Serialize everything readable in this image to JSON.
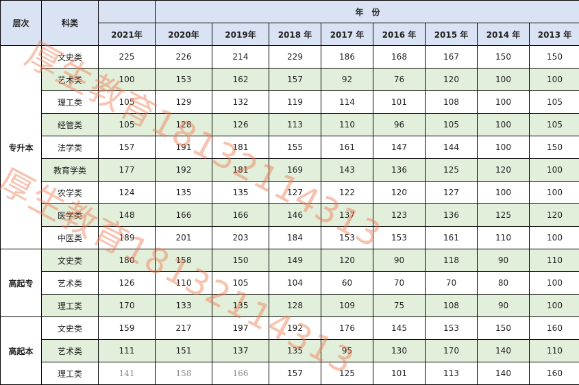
{
  "header": {
    "level": "层次",
    "category": "科类",
    "year_group": "年　份",
    "years": [
      "2021年",
      "2020年",
      "2019年",
      "2018 年",
      "2017 年",
      "2016 年",
      "2015 年",
      "2014 年",
      "2013 年"
    ]
  },
  "groups": [
    {
      "level": "专升本",
      "rows": [
        {
          "category": "文史类",
          "values": [
            "225",
            "226",
            "214",
            "229",
            "186",
            "168",
            "167",
            "150",
            "150"
          ]
        },
        {
          "category": "艺术类",
          "values": [
            "100",
            "153",
            "162",
            "157",
            "92",
            "76",
            "120",
            "100",
            "100"
          ]
        },
        {
          "category": "理工类",
          "values": [
            "105",
            "129",
            "132",
            "119",
            "114",
            "101",
            "108",
            "100",
            "105"
          ]
        },
        {
          "category": "经管类",
          "values": [
            "105",
            "128",
            "126",
            "113",
            "110",
            "96",
            "105",
            "100",
            "105"
          ]
        },
        {
          "category": "法学类",
          "values": [
            "157",
            "191",
            "181",
            "155",
            "161",
            "147",
            "144",
            "100",
            "150"
          ]
        },
        {
          "category": "教育学类",
          "values": [
            "177",
            "192",
            "181",
            "169",
            "143",
            "136",
            "125",
            "120",
            "100"
          ]
        },
        {
          "category": "农学类",
          "values": [
            "124",
            "135",
            "135",
            "127",
            "122",
            "120",
            "127",
            "100",
            "100"
          ]
        },
        {
          "category": "医学类",
          "values": [
            "148",
            "166",
            "166",
            "146",
            "137",
            "123",
            "136",
            "125",
            "120"
          ]
        },
        {
          "category": "中医类",
          "values": [
            "189",
            "201",
            "203",
            "184",
            "153",
            "153",
            "161",
            "110",
            "100"
          ]
        }
      ]
    },
    {
      "level": "高起专",
      "rows": [
        {
          "category": "文史类",
          "values": [
            "180",
            "158",
            "150",
            "149",
            "120",
            "90",
            "118",
            "90",
            "110"
          ]
        },
        {
          "category": "艺术类",
          "values": [
            "126",
            "110",
            "105",
            "104",
            "60",
            "70",
            "70",
            "80",
            "100"
          ]
        },
        {
          "category": "理工类",
          "values": [
            "170",
            "133",
            "135",
            "128",
            "109",
            "75",
            "108",
            "90",
            "100"
          ]
        }
      ]
    },
    {
      "level": "高起本",
      "rows": [
        {
          "category": "文史类",
          "values": [
            "159",
            "217",
            "197",
            "192",
            "176",
            "145",
            "153",
            "150",
            "160"
          ]
        },
        {
          "category": "艺术类",
          "values": [
            "111",
            "151",
            "137",
            "135",
            "95",
            "130",
            "170",
            "140",
            "110"
          ]
        },
        {
          "category": "理工类",
          "values": [
            "141",
            "158",
            "166",
            "157",
            "125",
            "101",
            "113",
            "140",
            "160"
          ]
        }
      ]
    }
  ],
  "watermark": "厚生教育18132114313",
  "colors": {
    "header_bg": "#dae3f3",
    "stripe_bg": "#e2efda",
    "watermark": "#f07850"
  }
}
